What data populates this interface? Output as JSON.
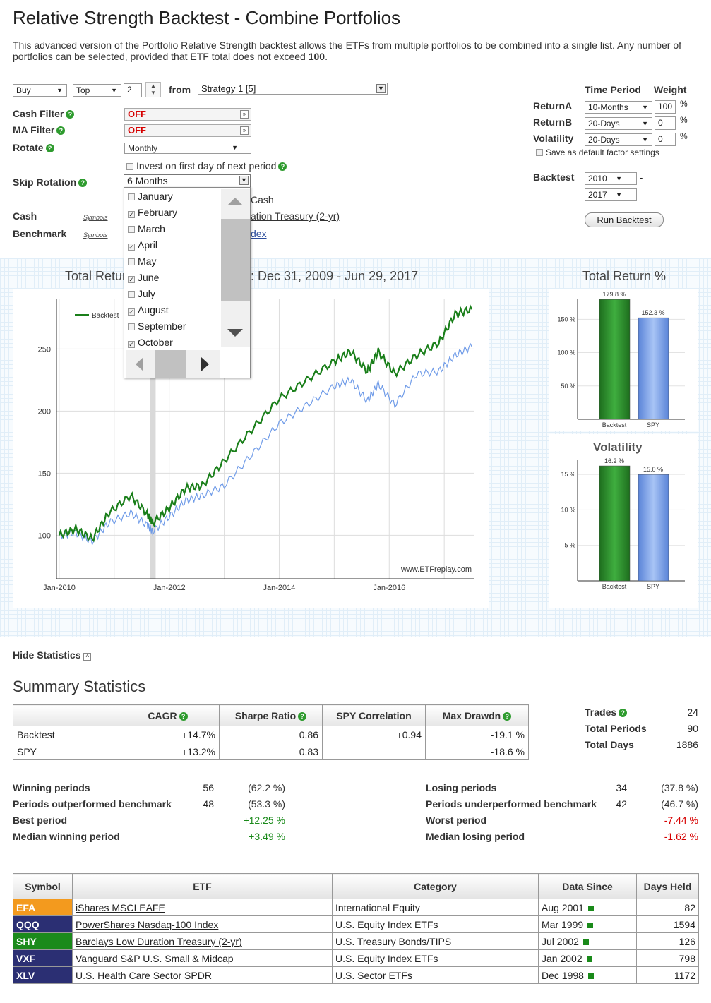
{
  "title": "Relative Strength Backtest - Combine Portfolios",
  "intro": {
    "text": "This advanced version of the Portfolio Relative Strength backtest allows the ETFs from multiple portfolios to be combined into a single list. Any number of portfolios can be selected, provided that ETF total does not exceed ",
    "limit": "100",
    "end": "."
  },
  "controls": {
    "buy": "Buy",
    "top": "Top",
    "count": "2",
    "from_label": "from",
    "portfolio": "Strategy 1 [5]",
    "cash_filter_label": "Cash Filter",
    "cash_filter_value": "OFF",
    "ma_filter_label": "MA Filter",
    "ma_filter_value": "OFF",
    "rotate_label": "Rotate",
    "rotate_value": "Monthly",
    "invest_first_day": "Invest on first day of next period",
    "skip_rotation_label": "Skip Rotation",
    "skip_rotation_value": "6 Months",
    "cash_partial": "Cash",
    "cash_label": "Cash",
    "cash_value_partial": "ation Treasury (2-yr)",
    "benchmark_label": "Benchmark",
    "benchmark_value_partial": "dex",
    "symbols": "Symbols"
  },
  "months": [
    {
      "name": "January",
      "checked": false
    },
    {
      "name": "February",
      "checked": true
    },
    {
      "name": "March",
      "checked": false
    },
    {
      "name": "April",
      "checked": true
    },
    {
      "name": "May",
      "checked": false
    },
    {
      "name": "June",
      "checked": true
    },
    {
      "name": "July",
      "checked": false
    },
    {
      "name": "August",
      "checked": true
    },
    {
      "name": "September",
      "checked": false
    },
    {
      "name": "October",
      "checked": true
    }
  ],
  "factors": {
    "time_period_header": "Time Period",
    "weight_header": "Weight",
    "rows": [
      {
        "label": "ReturnA",
        "period": "10-Months",
        "weight": "100",
        "unit": "%"
      },
      {
        "label": "ReturnB",
        "period": "20-Days",
        "weight": "0",
        "unit": "%"
      },
      {
        "label": "Volatility",
        "period": "20-Days",
        "weight": "0",
        "unit": "%"
      }
    ],
    "save_default": "Save as default factor settings",
    "backtest_label": "Backtest",
    "start_year": "2010",
    "dash": "-",
    "end_year": "2017",
    "run_button": "Run Backtest"
  },
  "chart_titles": {
    "main_left": "Total Retur",
    "main_right": "ds): Dec 31, 2009 - Jun 29, 2017",
    "side_total": "Total Return %",
    "side_vol": "Volatility",
    "watermark": "www.ETFreplay.com"
  },
  "chart_data": [
    {
      "type": "line",
      "title": "Total Return (..ds): Dec 31, 2009 - Jun 29, 2017",
      "x_ticks": [
        "Jan-2010",
        "Jan-2012",
        "Jan-2014",
        "Jan-2016"
      ],
      "y_ticks": [
        "100",
        "150",
        "200",
        "250"
      ],
      "ylim": [
        65,
        290
      ],
      "legend": "top-left",
      "series": [
        {
          "name": "Backtest",
          "color": "#1a7f1a",
          "x": [
            2010.0,
            2010.3,
            2010.6,
            2010.9,
            2011.3,
            2011.6,
            2011.7,
            2012.0,
            2012.3,
            2012.6,
            2013.0,
            2013.5,
            2014.0,
            2014.5,
            2015.0,
            2015.3,
            2015.6,
            2015.8,
            2016.1,
            2016.5,
            2016.9,
            2017.2,
            2017.5
          ],
          "y": [
            100,
            105,
            97,
            118,
            132,
            117,
            110,
            122,
            138,
            140,
            160,
            185,
            210,
            225,
            240,
            248,
            232,
            248,
            230,
            245,
            255,
            278,
            282
          ]
        },
        {
          "name": "SPY",
          "color": "#6f9be8",
          "x": [
            2010.0,
            2010.3,
            2010.6,
            2010.9,
            2011.3,
            2011.6,
            2011.7,
            2012.0,
            2012.3,
            2012.6,
            2013.0,
            2013.5,
            2014.0,
            2014.5,
            2015.0,
            2015.3,
            2015.6,
            2015.8,
            2016.1,
            2016.5,
            2016.9,
            2017.2,
            2017.5
          ],
          "y": [
            100,
            102,
            95,
            110,
            118,
            108,
            103,
            115,
            128,
            132,
            140,
            165,
            190,
            205,
            220,
            225,
            208,
            222,
            205,
            230,
            232,
            245,
            252
          ]
        }
      ]
    },
    {
      "type": "bar",
      "title": "Total Return %",
      "categories": [
        "Backtest",
        "SPY"
      ],
      "values": [
        179.8,
        152.3
      ],
      "labels": [
        "179.8 %",
        "152.3 %"
      ],
      "y_ticks": [
        "50 %",
        "100 %",
        "150 %"
      ],
      "ylim": [
        0,
        180
      ]
    },
    {
      "type": "bar",
      "title": "Volatility",
      "categories": [
        "Backtest",
        "SPY"
      ],
      "values": [
        16.2,
        15.0
      ],
      "labels": [
        "16.2 %",
        "15.0 %"
      ],
      "y_ticks": [
        "5 %",
        "10 %",
        "15 %"
      ],
      "ylim": [
        0,
        17
      ]
    }
  ],
  "hide_stats": "Hide Statistics",
  "summary_title": "Summary Statistics",
  "summary_table": {
    "headers": [
      "",
      "CAGR",
      "Sharpe Ratio",
      "SPY Correlation",
      "Max Drawdn"
    ],
    "rows": [
      [
        "Backtest",
        "+14.7%",
        "0.86",
        "+0.94",
        "-19.1 %"
      ],
      [
        "SPY",
        "+13.2%",
        "0.83",
        "",
        "-18.6 %"
      ]
    ]
  },
  "trades": {
    "trades_label": "Trades",
    "trades_value": "24",
    "periods_label": "Total Periods",
    "periods_value": "90",
    "days_label": "Total Days",
    "days_value": "1886"
  },
  "period_stats_left": [
    {
      "label": "Winning periods",
      "n": "56",
      "pct": "(62.2 %)"
    },
    {
      "label": "Periods outperformed benchmark",
      "n": "48",
      "pct": "(53.3 %)"
    },
    {
      "label": "Best period",
      "n": "",
      "pct": "+12.25 %"
    },
    {
      "label": "Median winning period",
      "n": "",
      "pct": "+3.49 %"
    }
  ],
  "period_stats_right": [
    {
      "label": "Losing periods",
      "n": "34",
      "pct": "(37.8 %)"
    },
    {
      "label": "Periods underperformed benchmark",
      "n": "42",
      "pct": "(46.7 %)"
    },
    {
      "label": "Worst period",
      "n": "",
      "pct": "-7.44 %"
    },
    {
      "label": "Median losing period",
      "n": "",
      "pct": "-1.62 %"
    }
  ],
  "etf_table": {
    "headers": [
      "Symbol",
      "ETF",
      "Category",
      "Data Since",
      "Days Held"
    ],
    "rows": [
      {
        "symbol": "EFA",
        "color": "#f39a1e",
        "name": "iShares MSCI EAFE",
        "category": "International Equity",
        "since": "Aug 2001",
        "days": "82"
      },
      {
        "symbol": "QQQ",
        "color": "#2b2f73",
        "name": "PowerShares Nasdaq-100 Index",
        "category": "U.S. Equity Index ETFs",
        "since": "Mar 1999",
        "days": "1594"
      },
      {
        "symbol": "SHY",
        "color": "#1b8a1b",
        "name": "Barclays Low Duration Treasury (2-yr)",
        "category": "U.S. Treasury Bonds/TIPS",
        "since": "Jul 2002",
        "days": "126"
      },
      {
        "symbol": "VXF",
        "color": "#2b2f73",
        "name": "Vanguard S&P U.S. Small & Midcap",
        "category": "U.S. Equity Index ETFs",
        "since": "Jan 2002",
        "days": "798"
      },
      {
        "symbol": "XLV",
        "color": "#2b2f73",
        "name": "U.S. Health Care Sector SPDR",
        "category": "U.S. Sector ETFs",
        "since": "Dec 1998",
        "days": "1172"
      }
    ]
  }
}
